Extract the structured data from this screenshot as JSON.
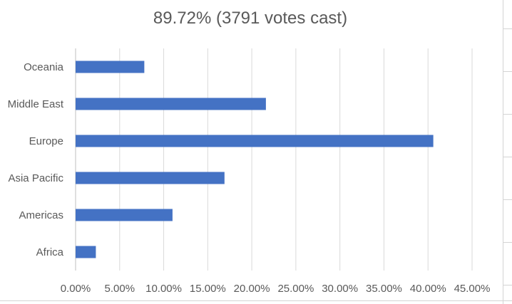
{
  "chart_data": {
    "type": "bar",
    "orientation": "horizontal",
    "title": "89.72% (3791 votes cast)",
    "categories": [
      "Oceania",
      "Middle East",
      "Europe",
      "Asia Pacific",
      "Americas",
      "Africa"
    ],
    "values": [
      7.8,
      21.6,
      40.6,
      16.9,
      11.0,
      2.3
    ],
    "xlim": [
      0,
      45
    ],
    "x_ticks": [
      "0.00%",
      "5.00%",
      "10.00%",
      "15.00%",
      "20.00%",
      "25.00%",
      "30.00%",
      "35.00%",
      "40.00%",
      "45.00%"
    ],
    "x_tick_values": [
      0,
      5,
      10,
      15,
      20,
      25,
      30,
      35,
      40,
      45
    ],
    "grid": "vertical",
    "legend": "none",
    "bar_color": "#4472c4",
    "gridline_color": "#d9d9d9"
  }
}
